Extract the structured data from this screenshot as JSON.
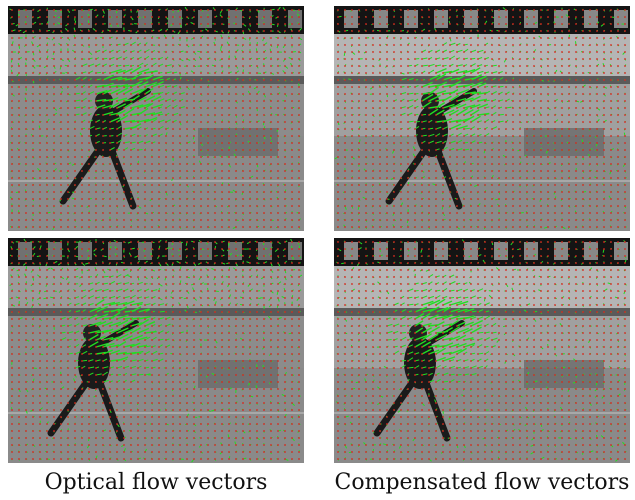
{
  "captions": {
    "left": "Optical flow vectors",
    "right": "Compensated flow vectors"
  },
  "panels": [
    {
      "name": "frame-1-optical-flow",
      "variant": "optical",
      "person_offset": 0
    },
    {
      "name": "frame-1-compensated-flow",
      "variant": "compensated",
      "person_offset": 0
    },
    {
      "name": "frame-2-optical-flow",
      "variant": "optical",
      "person_offset": 1
    },
    {
      "name": "frame-2-compensated-flow",
      "variant": "compensated",
      "person_offset": 1
    }
  ],
  "colors": {
    "flow_vector": "#22dd22",
    "grid_dot": "#e0201e",
    "background_dark": "#141414",
    "background_mid": "#7d7d7d",
    "floor": "#8a8a8a"
  }
}
